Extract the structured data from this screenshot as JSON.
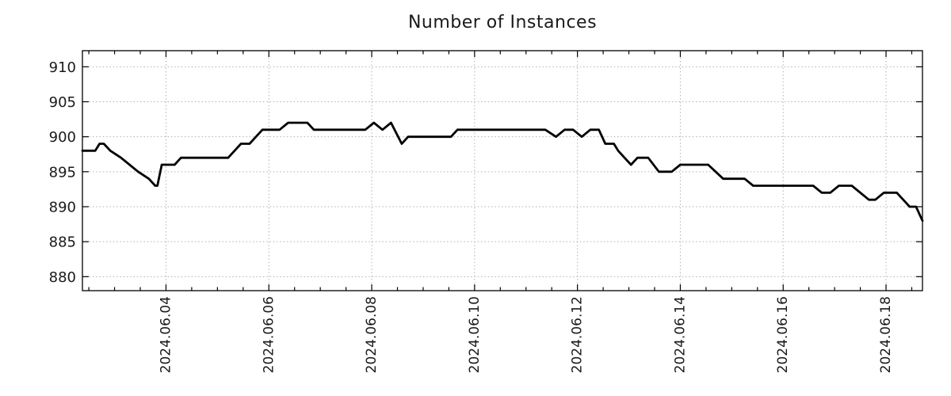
{
  "chart_data": {
    "type": "line",
    "title": "Number of Instances",
    "legend": "none",
    "grid": "dotted",
    "background": "#ffffff",
    "line_color": "#000000",
    "grid_color": "#b1b1b1",
    "x_tick_labels": [
      "2024.06.04",
      "2024.06.06",
      "2024.06.08",
      "2024.06.10",
      "2024.06.12",
      "2024.06.14",
      "2024.06.16",
      "2024.06.18"
    ],
    "y_tick_labels": [
      "880",
      "885",
      "890",
      "895",
      "900",
      "905",
      "910"
    ],
    "x_minor_tick_hours": 12,
    "x_range": [
      "2024-06-02 09:00",
      "2024-06-18 17:00"
    ],
    "ylim": [
      878,
      912.3
    ],
    "series": [
      {
        "name": "instances",
        "points": [
          [
            "2024-06-02 09:00",
            898
          ],
          [
            "2024-06-02 15:00",
            898
          ],
          [
            "2024-06-02 17:00",
            899
          ],
          [
            "2024-06-02 19:00",
            899
          ],
          [
            "2024-06-02 22:00",
            898
          ],
          [
            "2024-06-03 03:00",
            897
          ],
          [
            "2024-06-03 07:00",
            896
          ],
          [
            "2024-06-03 11:00",
            895
          ],
          [
            "2024-06-03 16:00",
            894
          ],
          [
            "2024-06-03 19:00",
            893
          ],
          [
            "2024-06-03 20:00",
            893
          ],
          [
            "2024-06-03 22:00",
            896
          ],
          [
            "2024-06-04 04:00",
            896
          ],
          [
            "2024-06-04 07:00",
            897
          ],
          [
            "2024-06-05 05:00",
            897
          ],
          [
            "2024-06-05 08:00",
            898
          ],
          [
            "2024-06-05 11:00",
            899
          ],
          [
            "2024-06-05 15:00",
            899
          ],
          [
            "2024-06-05 18:00",
            900
          ],
          [
            "2024-06-05 21:00",
            901
          ],
          [
            "2024-06-06 05:00",
            901
          ],
          [
            "2024-06-06 09:00",
            902
          ],
          [
            "2024-06-06 18:00",
            902
          ],
          [
            "2024-06-06 21:00",
            901
          ],
          [
            "2024-06-07 21:00",
            901
          ],
          [
            "2024-06-08 01:00",
            902
          ],
          [
            "2024-06-08 05:00",
            901
          ],
          [
            "2024-06-08 09:00",
            902
          ],
          [
            "2024-06-08 14:00",
            899
          ],
          [
            "2024-06-08 17:00",
            900
          ],
          [
            "2024-06-09 13:00",
            900
          ],
          [
            "2024-06-09 16:00",
            901
          ],
          [
            "2024-06-11 09:00",
            901
          ],
          [
            "2024-06-11 14:00",
            900
          ],
          [
            "2024-06-11 18:00",
            901
          ],
          [
            "2024-06-11 22:00",
            901
          ],
          [
            "2024-06-12 02:00",
            900
          ],
          [
            "2024-06-12 06:00",
            901
          ],
          [
            "2024-06-12 10:00",
            901
          ],
          [
            "2024-06-12 13:00",
            899
          ],
          [
            "2024-06-12 17:00",
            899
          ],
          [
            "2024-06-12 19:00",
            898
          ],
          [
            "2024-06-12 22:00",
            897
          ],
          [
            "2024-06-13 01:00",
            896
          ],
          [
            "2024-06-13 04:00",
            897
          ],
          [
            "2024-06-13 09:00",
            897
          ],
          [
            "2024-06-13 14:00",
            895
          ],
          [
            "2024-06-13 20:00",
            895
          ],
          [
            "2024-06-14 00:00",
            896
          ],
          [
            "2024-06-14 13:00",
            896
          ],
          [
            "2024-06-14 20:00",
            894
          ],
          [
            "2024-06-15 06:00",
            894
          ],
          [
            "2024-06-15 10:00",
            893
          ],
          [
            "2024-06-16 14:00",
            893
          ],
          [
            "2024-06-16 18:00",
            892
          ],
          [
            "2024-06-16 22:00",
            892
          ],
          [
            "2024-06-17 02:00",
            893
          ],
          [
            "2024-06-17 08:00",
            893
          ],
          [
            "2024-06-17 16:00",
            891
          ],
          [
            "2024-06-17 19:00",
            891
          ],
          [
            "2024-06-17 23:00",
            892
          ],
          [
            "2024-06-18 05:00",
            892
          ],
          [
            "2024-06-18 11:00",
            890
          ],
          [
            "2024-06-18 14:00",
            890
          ],
          [
            "2024-06-18 17:00",
            888
          ]
        ]
      }
    ]
  }
}
